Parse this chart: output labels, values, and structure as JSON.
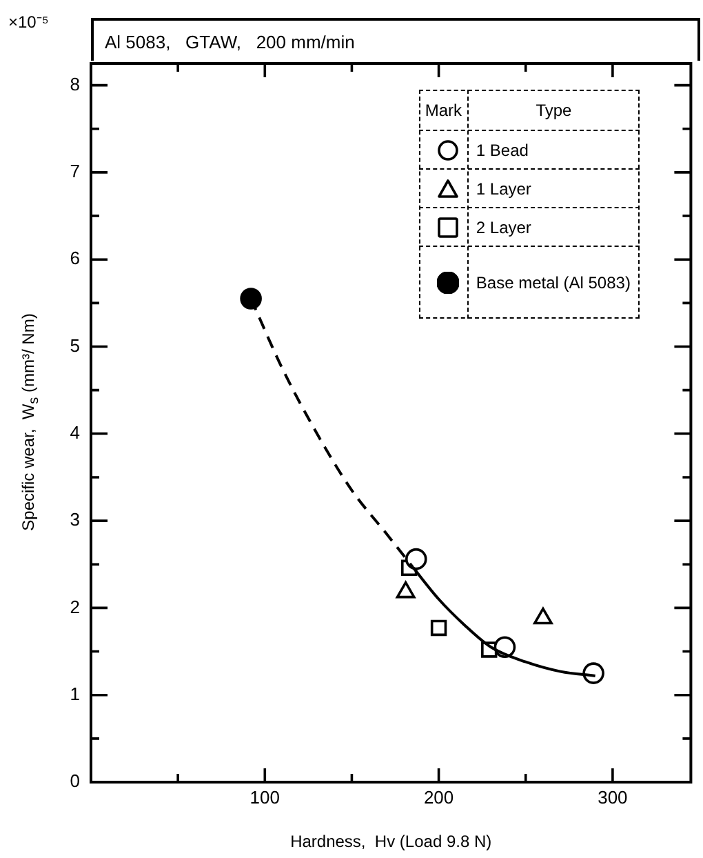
{
  "chart_data": {
    "type": "scatter",
    "title": "Al 5083,   GTAW,   200 mm/min",
    "xlabel": "Hardness,  Hv (Load 9.8 N)",
    "ylabel": "Specific wear,  W$_{s}$ (mm³/ Nm)",
    "legend_title": "Type",
    "annotations": [
      "×10⁻⁵",
      "Mark"
    ],
    "xlim": [
      0,
      345
    ],
    "xticks": [
      {
        "value": 50,
        "label": null
      },
      100,
      {
        "value": 150,
        "label": null
      },
      200,
      {
        "value": 250,
        "label": null
      },
      300
    ],
    "ylim": [
      0,
      8.25
    ],
    "yticks": [
      0,
      {
        "value": 0.5,
        "label": null
      },
      1,
      {
        "value": 1.5,
        "label": null
      },
      2,
      {
        "value": 2.5,
        "label": null
      },
      3,
      {
        "value": 3.5,
        "label": null
      },
      4,
      {
        "value": 4.5,
        "label": null
      },
      5,
      {
        "value": 5.5,
        "label": null
      },
      6,
      {
        "value": 6.5,
        "label": null
      },
      7,
      {
        "value": 7.5,
        "label": null
      },
      8
    ],
    "grid": false,
    "legend": "top right",
    "series": [
      {
        "type": "line",
        "color": "#000000",
        "line_style": "dashed",
        "x": [
          92,
          110,
          130,
          150,
          170,
          185
        ],
        "values": [
          5.55,
          4.75,
          4.0,
          3.35,
          2.85,
          2.47
        ]
      },
      {
        "type": "line",
        "color": "#000000",
        "line_style": "solid",
        "x": [
          185,
          200,
          215,
          230,
          250,
          270,
          290
        ],
        "values": [
          2.47,
          2.1,
          1.8,
          1.55,
          1.38,
          1.27,
          1.22
        ]
      },
      {
        "name": "1 Bead",
        "color": "#000000",
        "marker": "circle",
        "x": [
          187,
          238,
          289
        ],
        "values": [
          2.56,
          1.55,
          1.25
        ]
      },
      {
        "name": "1 Layer",
        "color": "#000000",
        "marker": "triangle",
        "x": [
          181,
          260
        ],
        "values": [
          2.18,
          1.88
        ]
      },
      {
        "name": "2 Layer",
        "color": "#000000",
        "marker": "square",
        "x": [
          183,
          200,
          229
        ],
        "values": [
          2.46,
          1.77,
          1.52
        ]
      },
      {
        "name": "Base metal (Al 5083)",
        "color": "#000000",
        "marker": "circle",
        "x": [
          92
        ],
        "values": [
          5.55
        ]
      }
    ]
  }
}
